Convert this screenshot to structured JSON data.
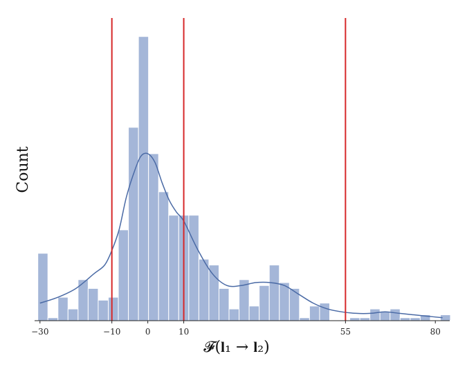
{
  "chart_data": {
    "type": "bar",
    "subtype": "histogram-with-kde",
    "xlabel": "𝓕(𝐥₁ → 𝐥₂)",
    "ylabel": "Count",
    "xlim": [
      -31.5,
      84
    ],
    "ylim": [
      0,
      100
    ],
    "x_ticks": [
      -30,
      -10,
      0,
      10,
      55,
      80
    ],
    "x_tick_labels": [
      "−30",
      "−10",
      "0",
      "10",
      "55",
      "80"
    ],
    "bin_width": 2.8,
    "bin_start": -30.6,
    "bins": [
      {
        "x0": -30.6,
        "count": 23
      },
      {
        "x0": -27.8,
        "count": 1
      },
      {
        "x0": -25.0,
        "count": 8
      },
      {
        "x0": -22.2,
        "count": 4
      },
      {
        "x0": -19.4,
        "count": 14
      },
      {
        "x0": -16.6,
        "count": 11
      },
      {
        "x0": -13.8,
        "count": 7
      },
      {
        "x0": -11.0,
        "count": 8
      },
      {
        "x0": -8.2,
        "count": 31
      },
      {
        "x0": -5.4,
        "count": 66
      },
      {
        "x0": -2.6,
        "count": 97
      },
      {
        "x0": 0.2,
        "count": 57
      },
      {
        "x0": 3.0,
        "count": 44
      },
      {
        "x0": 5.8,
        "count": 36
      },
      {
        "x0": 8.6,
        "count": 36
      },
      {
        "x0": 11.4,
        "count": 36
      },
      {
        "x0": 14.2,
        "count": 21
      },
      {
        "x0": 17.0,
        "count": 19
      },
      {
        "x0": 19.8,
        "count": 11
      },
      {
        "x0": 22.6,
        "count": 4
      },
      {
        "x0": 25.4,
        "count": 14
      },
      {
        "x0": 28.2,
        "count": 5
      },
      {
        "x0": 31.0,
        "count": 12
      },
      {
        "x0": 33.8,
        "count": 19
      },
      {
        "x0": 36.6,
        "count": 13
      },
      {
        "x0": 39.4,
        "count": 11
      },
      {
        "x0": 42.2,
        "count": 1
      },
      {
        "x0": 45.0,
        "count": 5
      },
      {
        "x0": 47.8,
        "count": 6
      },
      {
        "x0": 50.6,
        "count": 0
      },
      {
        "x0": 53.4,
        "count": 0
      },
      {
        "x0": 56.2,
        "count": 1
      },
      {
        "x0": 59.0,
        "count": 1
      },
      {
        "x0": 61.8,
        "count": 4
      },
      {
        "x0": 64.6,
        "count": 3
      },
      {
        "x0": 67.4,
        "count": 4
      },
      {
        "x0": 70.2,
        "count": 1
      },
      {
        "x0": 73.0,
        "count": 1
      },
      {
        "x0": 75.8,
        "count": 2
      },
      {
        "x0": 78.6,
        "count": 0
      },
      {
        "x0": 81.4,
        "count": 2
      }
    ],
    "kde": {
      "x": [
        -30,
        -25,
        -20,
        -15,
        -12,
        -10,
        -8,
        -6,
        -4,
        -2,
        0,
        2,
        4,
        6,
        8,
        10,
        14,
        18,
        22,
        26,
        30,
        34,
        38,
        42,
        46,
        50,
        54,
        58,
        62,
        66,
        70,
        74,
        78,
        82
      ],
      "y": [
        6,
        8,
        11,
        16,
        19,
        24,
        31,
        42,
        50,
        56,
        57,
        54,
        47,
        41,
        37,
        34,
        24,
        16,
        12,
        12,
        13,
        13,
        12,
        9,
        6,
        4,
        3,
        2.5,
        2.5,
        3,
        2.5,
        2,
        1.5,
        1
      ]
    },
    "vlines": [
      -10,
      10,
      55
    ],
    "colors": {
      "bar_fill": "#a4b6d8",
      "bar_stroke": "#ffffff",
      "kde_line": "#4a6aa5",
      "vline": "#d62728",
      "axis": "#222222"
    },
    "grid": false,
    "legend": "none"
  }
}
